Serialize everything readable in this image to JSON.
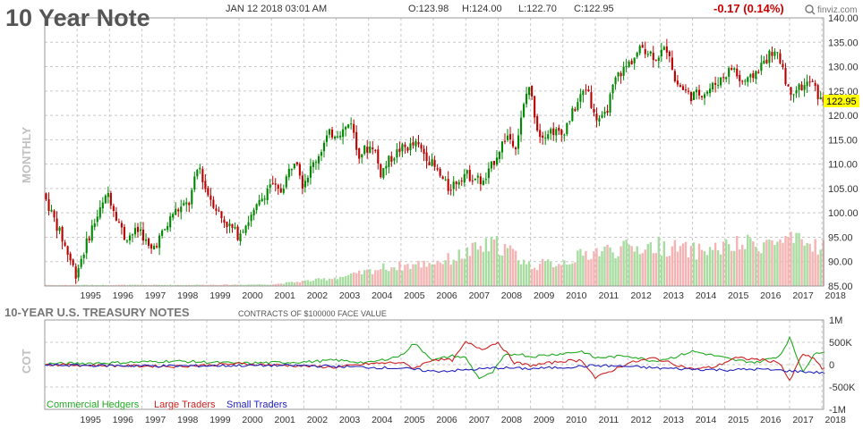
{
  "header": {
    "title": "10 Year Note",
    "datetime": "JAN 12 2018 03:01 AM",
    "open": "O:123.98",
    "high": "H:124.00",
    "low": "L:122.70",
    "close": "C:122.95",
    "change": "-0.17 (0.14%)",
    "brand": "finviz.com",
    "brand_icon": "finviz-logo-icon",
    "interval_label": "MONTHLY",
    "change_color": "#cc0000"
  },
  "cot_panel": {
    "title": "10-YEAR U.S. TREASURY NOTES",
    "subtitle": "CONTRACTS OF $100000 FACE VALUE",
    "side_label": "COT",
    "legend": [
      {
        "label": "Commercial Hedgers",
        "color": "#22aa22"
      },
      {
        "label": "Large Traders",
        "color": "#cc2222"
      },
      {
        "label": "Small Traders",
        "color": "#2222bb"
      }
    ]
  },
  "colors": {
    "up": "#008800",
    "down": "#bb0000",
    "vol_up": "#a8dca0",
    "vol_down": "#f4b4b4",
    "grid": "#c8c8c8",
    "last_price_bg": "#ffff00"
  },
  "chart_data": [
    {
      "type": "candlestick",
      "interval": "monthly",
      "x_range": [
        1994.0,
        2018.05
      ],
      "ylim": [
        85,
        140
      ],
      "y_ticks": [
        "85.00",
        "90.00",
        "95.00",
        "100.00",
        "105.00",
        "110.00",
        "115.00",
        "120.00",
        "125.00",
        "130.00",
        "135.00",
        "140.00"
      ],
      "x_ticks": [
        "1995",
        "1996",
        "1997",
        "1998",
        "1999",
        "2000",
        "2001",
        "2002",
        "2003",
        "2004",
        "2005",
        "2006",
        "2007",
        "2008",
        "2009",
        "2010",
        "2011",
        "2012",
        "2013",
        "2014",
        "2015",
        "2016",
        "2017",
        "2018"
      ],
      "last_price": "122.95",
      "price_path": [
        [
          1994.0,
          104.0
        ],
        [
          1994.5,
          96.0
        ],
        [
          1995.0,
          87.5
        ],
        [
          1995.5,
          97.0
        ],
        [
          1996.0,
          104.0
        ],
        [
          1996.5,
          95.0
        ],
        [
          1997.0,
          96.5
        ],
        [
          1997.3,
          92.0
        ],
        [
          1997.8,
          97.0
        ],
        [
          1998.0,
          100.0
        ],
        [
          1998.5,
          102.0
        ],
        [
          1998.8,
          110.0
        ],
        [
          1999.0,
          105.0
        ],
        [
          1999.5,
          99.0
        ],
        [
          2000.0,
          95.5
        ],
        [
          2000.5,
          100.0
        ],
        [
          2001.0,
          106.0
        ],
        [
          2001.3,
          104.0
        ],
        [
          2001.8,
          112.0
        ],
        [
          2002.0,
          106.0
        ],
        [
          2002.5,
          112.0
        ],
        [
          2002.8,
          116.0
        ],
        [
          2003.3,
          117.0
        ],
        [
          2003.5,
          119.0
        ],
        [
          2003.7,
          112.0
        ],
        [
          2004.2,
          114.0
        ],
        [
          2004.4,
          108.0
        ],
        [
          2004.7,
          111.0
        ],
        [
          2005.0,
          113.0
        ],
        [
          2005.5,
          114.0
        ],
        [
          2005.8,
          112.0
        ],
        [
          2006.0,
          110.0
        ],
        [
          2006.5,
          105.0
        ],
        [
          2007.0,
          108.0
        ],
        [
          2007.4,
          107.0
        ],
        [
          2007.6,
          106.0
        ],
        [
          2008.0,
          112.0
        ],
        [
          2008.3,
          116.0
        ],
        [
          2008.6,
          114.0
        ],
        [
          2008.9,
          124.0
        ],
        [
          2009.0,
          126.0
        ],
        [
          2009.3,
          116.0
        ],
        [
          2009.7,
          117.0
        ],
        [
          2010.0,
          116.0
        ],
        [
          2010.6,
          124.0
        ],
        [
          2010.8,
          126.0
        ],
        [
          2011.0,
          120.0
        ],
        [
          2011.3,
          119.0
        ],
        [
          2011.7,
          128.0
        ],
        [
          2012.0,
          130.0
        ],
        [
          2012.5,
          134.0
        ],
        [
          2012.9,
          132.0
        ],
        [
          2013.3,
          134.0
        ],
        [
          2013.5,
          127.0
        ],
        [
          2013.8,
          125.0
        ],
        [
          2014.0,
          124.0
        ],
        [
          2014.5,
          125.0
        ],
        [
          2015.0,
          128.0
        ],
        [
          2015.3,
          130.0
        ],
        [
          2015.5,
          127.0
        ],
        [
          2015.8,
          127.0
        ],
        [
          2016.0,
          129.0
        ],
        [
          2016.5,
          133.0
        ],
        [
          2016.8,
          131.0
        ],
        [
          2017.0,
          125.0
        ],
        [
          2017.5,
          126.0
        ],
        [
          2017.7,
          127.0
        ],
        [
          2018.0,
          123.0
        ]
      ],
      "volume_range": [
        0,
        100
      ],
      "volume_path": [
        [
          1994.0,
          2
        ],
        [
          1998.0,
          2
        ],
        [
          2001.0,
          3
        ],
        [
          2002.5,
          12
        ],
        [
          2003.5,
          20
        ],
        [
          2004.5,
          35
        ],
        [
          2005.5,
          40
        ],
        [
          2006.5,
          50
        ],
        [
          2007.5,
          72
        ],
        [
          2008.0,
          78
        ],
        [
          2008.5,
          60
        ],
        [
          2009.0,
          38
        ],
        [
          2010.0,
          45
        ],
        [
          2011.0,
          65
        ],
        [
          2012.0,
          70
        ],
        [
          2013.0,
          75
        ],
        [
          2014.0,
          65
        ],
        [
          2015.0,
          72
        ],
        [
          2016.0,
          80
        ],
        [
          2017.0,
          82
        ],
        [
          2018.0,
          75
        ]
      ]
    },
    {
      "type": "line",
      "title": "10-YEAR U.S. TREASURY NOTES",
      "subtitle": "CONTRACTS OF $100000 FACE VALUE",
      "ylabel": "COT",
      "ylim": [
        -1000000,
        1000000
      ],
      "y_ticks": [
        "1M",
        "500K",
        "0",
        "-500K",
        "-1M"
      ],
      "x_ticks": [
        "1995",
        "1996",
        "1997",
        "1998",
        "1999",
        "2000",
        "2001",
        "2002",
        "2003",
        "2004",
        "2005",
        "2006",
        "2007",
        "2008",
        "2009",
        "2010",
        "2011",
        "2012",
        "2013",
        "2014",
        "2015",
        "2016",
        "2017",
        "2018"
      ],
      "series": [
        {
          "name": "Commercial Hedgers",
          "color": "#22aa22",
          "points": [
            [
              1994.0,
              20000
            ],
            [
              1996.0,
              40000
            ],
            [
              1998.0,
              80000
            ],
            [
              2000.0,
              30000
            ],
            [
              2002.0,
              60000
            ],
            [
              2003.0,
              100000
            ],
            [
              2004.0,
              40000
            ],
            [
              2005.0,
              200000
            ],
            [
              2005.4,
              480000
            ],
            [
              2006.0,
              100000
            ],
            [
              2006.6,
              200000
            ],
            [
              2007.0,
              150000
            ],
            [
              2007.4,
              -300000
            ],
            [
              2007.8,
              -200000
            ],
            [
              2008.2,
              200000
            ],
            [
              2008.6,
              250000
            ],
            [
              2009.0,
              180000
            ],
            [
              2010.0,
              250000
            ],
            [
              2010.6,
              300000
            ],
            [
              2011.0,
              150000
            ],
            [
              2012.0,
              200000
            ],
            [
              2012.8,
              80000
            ],
            [
              2013.5,
              180000
            ],
            [
              2014.0,
              300000
            ],
            [
              2014.7,
              200000
            ],
            [
              2015.3,
              100000
            ],
            [
              2016.0,
              50000
            ],
            [
              2016.7,
              200000
            ],
            [
              2017.0,
              600000
            ],
            [
              2017.4,
              -150000
            ],
            [
              2017.8,
              250000
            ],
            [
              2018.0,
              300000
            ]
          ]
        },
        {
          "name": "Large Traders",
          "color": "#cc2222",
          "points": [
            [
              1994.0,
              0
            ],
            [
              1996.0,
              -20000
            ],
            [
              1998.0,
              -40000
            ],
            [
              2000.0,
              20000
            ],
            [
              2002.0,
              -30000
            ],
            [
              2003.0,
              -60000
            ],
            [
              2004.0,
              20000
            ],
            [
              2005.0,
              50000
            ],
            [
              2005.4,
              -80000
            ],
            [
              2006.0,
              120000
            ],
            [
              2006.6,
              100000
            ],
            [
              2007.0,
              500000
            ],
            [
              2007.5,
              350000
            ],
            [
              2008.0,
              500000
            ],
            [
              2008.5,
              50000
            ],
            [
              2009.0,
              -20000
            ],
            [
              2010.0,
              80000
            ],
            [
              2010.6,
              100000
            ],
            [
              2011.0,
              -300000
            ],
            [
              2012.0,
              30000
            ],
            [
              2012.8,
              150000
            ],
            [
              2013.5,
              0
            ],
            [
              2014.0,
              -100000
            ],
            [
              2014.7,
              -50000
            ],
            [
              2015.3,
              150000
            ],
            [
              2016.0,
              120000
            ],
            [
              2016.7,
              50000
            ],
            [
              2017.0,
              -380000
            ],
            [
              2017.4,
              250000
            ],
            [
              2017.8,
              100000
            ],
            [
              2018.0,
              -80000
            ]
          ]
        },
        {
          "name": "Small Traders",
          "color": "#2222bb",
          "points": [
            [
              1994.0,
              -10000
            ],
            [
              1996.0,
              -20000
            ],
            [
              1998.0,
              -30000
            ],
            [
              2000.0,
              -20000
            ],
            [
              2002.0,
              -20000
            ],
            [
              2003.0,
              -40000
            ],
            [
              2004.0,
              -60000
            ],
            [
              2005.0,
              -80000
            ],
            [
              2006.0,
              -150000
            ],
            [
              2007.0,
              -120000
            ],
            [
              2008.0,
              -70000
            ],
            [
              2009.0,
              -90000
            ],
            [
              2010.0,
              -60000
            ],
            [
              2011.0,
              -20000
            ],
            [
              2012.0,
              -40000
            ],
            [
              2013.0,
              -80000
            ],
            [
              2014.0,
              -100000
            ],
            [
              2015.0,
              -120000
            ],
            [
              2016.0,
              -100000
            ],
            [
              2017.0,
              -140000
            ],
            [
              2018.0,
              -180000
            ]
          ]
        }
      ]
    }
  ]
}
